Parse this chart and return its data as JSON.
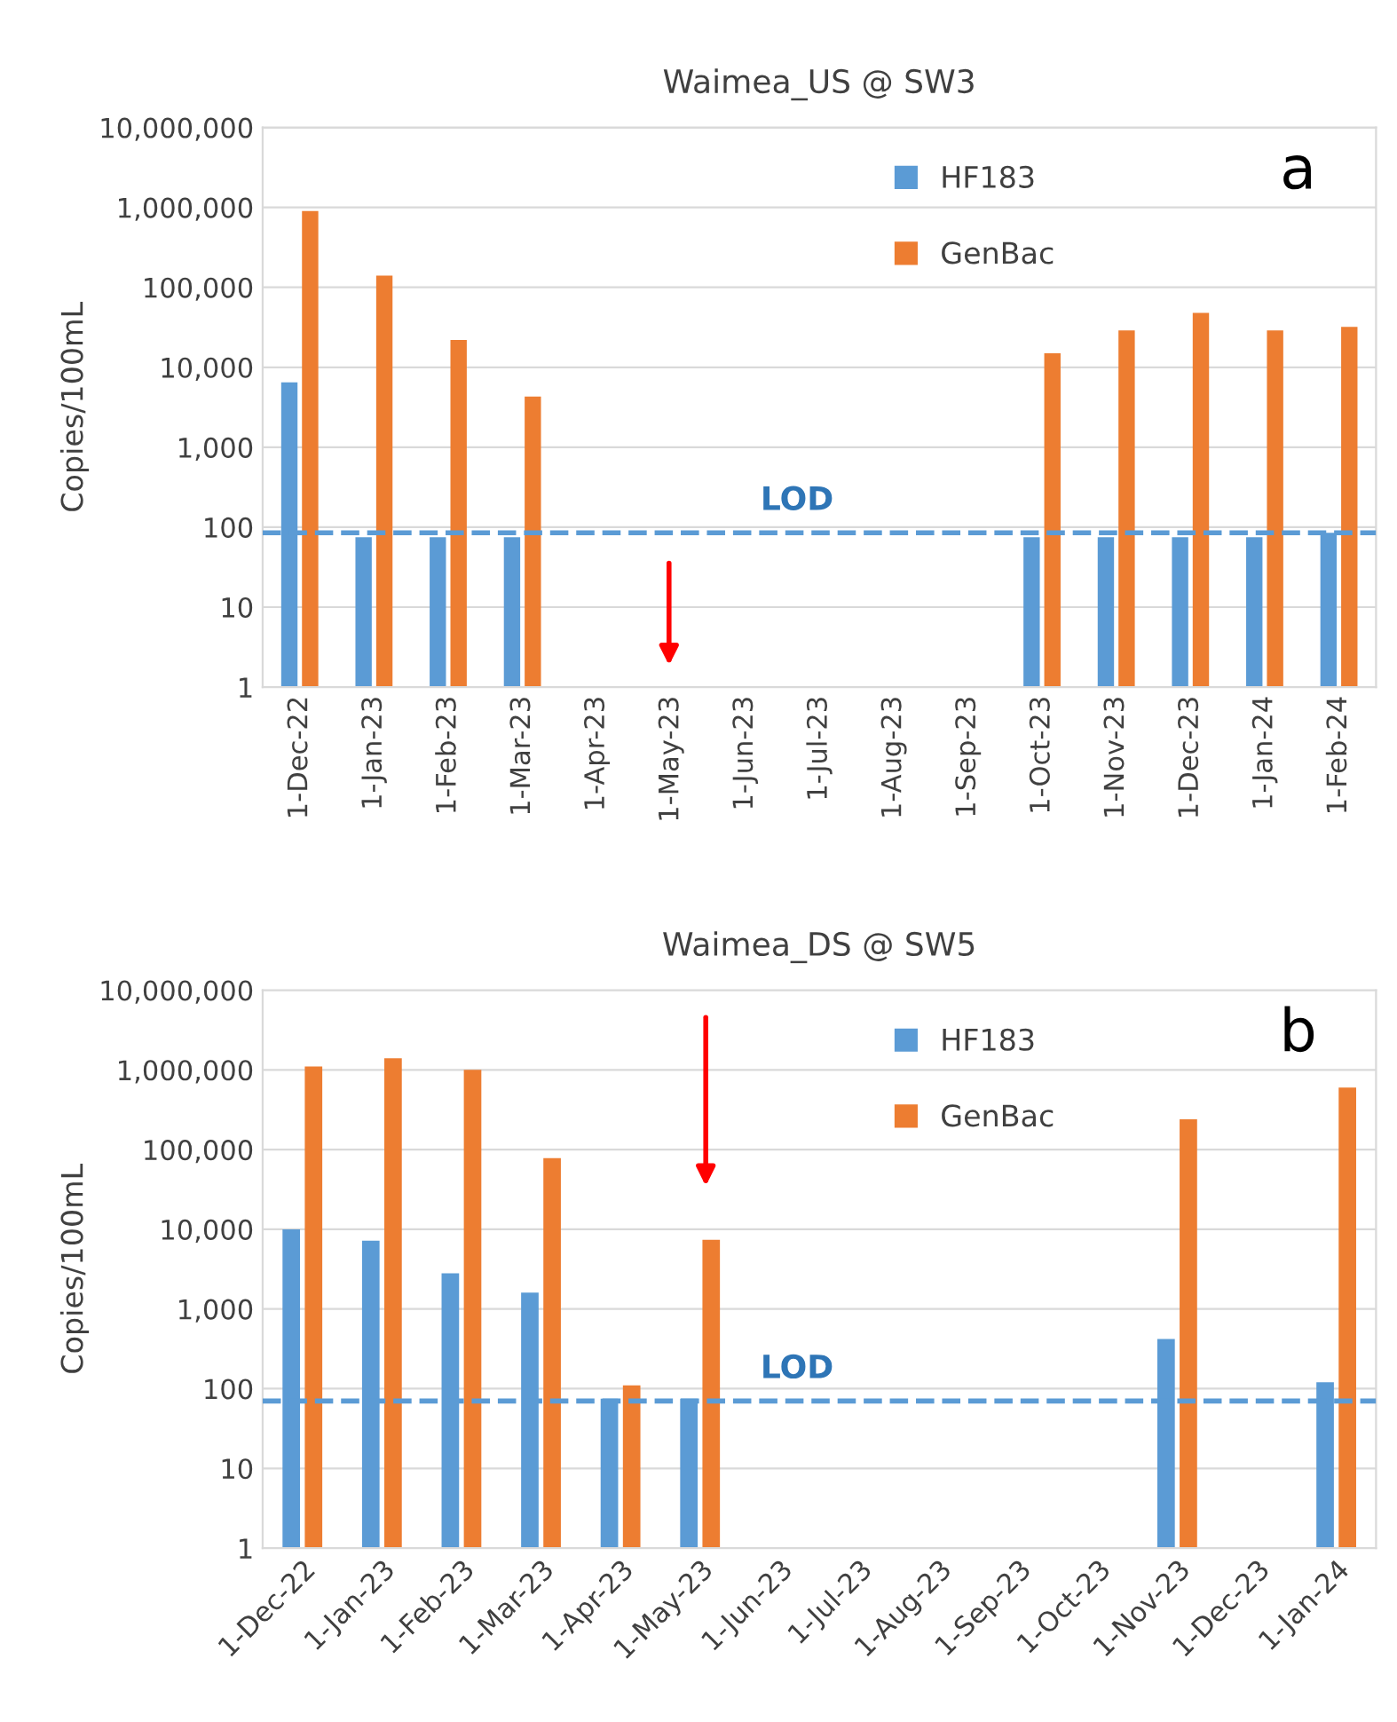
{
  "chart_data": [
    {
      "type": "bar",
      "title": "Waimea_US @ SW3",
      "ylabel": "Copies/100mL",
      "annotations": [
        "a"
      ],
      "categories": [
        "1-Dec-22",
        "1-Jan-23",
        "1-Feb-23",
        "1-Mar-23",
        "1-Apr-23",
        "1-May-23",
        "1-Jun-23",
        "1-Jul-23",
        "1-Aug-23",
        "1-Sep-23",
        "1-Oct-23",
        "1-Nov-23",
        "1-Dec-23",
        "1-Jan-24",
        "1-Feb-24"
      ],
      "series": [
        {
          "name": "HF183",
          "color": "#5b9bd5",
          "values": [
            6500,
            75,
            75,
            75,
            null,
            null,
            null,
            null,
            null,
            null,
            75,
            75,
            75,
            75,
            85
          ]
        },
        {
          "name": "GenBac",
          "color": "#ed7d31",
          "values": [
            900000,
            140000,
            22000,
            4300,
            null,
            null,
            null,
            null,
            null,
            null,
            15000,
            29000,
            48000,
            29000,
            32000
          ]
        }
      ],
      "log": "y",
      "ylim": [
        1,
        10000000
      ],
      "yticks": [
        1,
        10,
        100,
        {
          "value": 1000,
          "label": "1,000"
        },
        {
          "value": 10000,
          "label": "10,000"
        },
        {
          "value": 100000,
          "label": "100,000"
        },
        {
          "value": 1000000,
          "label": "1,000,000"
        },
        {
          "value": 10000000,
          "label": "10,000,000"
        }
      ],
      "ref_lines": [
        {
          "axis": "y",
          "value": 85,
          "label": "LOD",
          "color": "#5b9bd5",
          "line_style": "dashed"
        }
      ],
      "grid": "y",
      "legend": "top"
    },
    {
      "type": "bar",
      "title": "Waimea_DS @ SW5",
      "ylabel": "Copies/100mL",
      "annotations": [
        "b"
      ],
      "categories": [
        "1-Dec-22",
        "1-Jan-23",
        "1-Feb-23",
        "1-Mar-23",
        "1-Apr-23",
        "1-May-23",
        "1-Jun-23",
        "1-Jul-23",
        "1-Aug-23",
        "1-Sep-23",
        "1-Oct-23",
        "1-Nov-23",
        "1-Dec-23",
        "1-Jan-24"
      ],
      "series": [
        {
          "name": "HF183",
          "color": "#5b9bd5",
          "values": [
            10000,
            7200,
            2800,
            1600,
            75,
            75,
            null,
            null,
            null,
            null,
            null,
            420,
            null,
            120
          ]
        },
        {
          "name": "GenBac",
          "color": "#ed7d31",
          "values": [
            1100000,
            1400000,
            1000000,
            78000,
            110,
            7400,
            null,
            null,
            null,
            null,
            null,
            240000,
            null,
            600000
          ]
        }
      ],
      "log": "y",
      "ylim": [
        1,
        10000000
      ],
      "yticks": [
        1,
        10,
        100,
        {
          "value": 1000,
          "label": "1,000"
        },
        {
          "value": 10000,
          "label": "10,000"
        },
        {
          "value": 100000,
          "label": "100,000"
        },
        {
          "value": 1000000,
          "label": "1,000,000"
        },
        {
          "value": 10000000,
          "label": "10,000,000"
        }
      ],
      "ref_lines": [
        {
          "axis": "y",
          "value": 70,
          "label": "LOD",
          "color": "#5b9bd5",
          "line_style": "dashed"
        }
      ],
      "grid": "y",
      "legend": "top"
    }
  ]
}
